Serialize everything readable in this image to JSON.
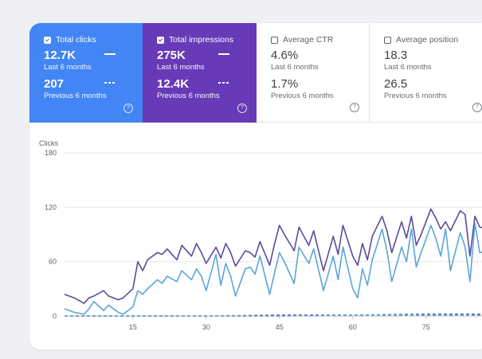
{
  "colors": {
    "clicks": "#4285f4",
    "impressions": "#673ab7",
    "clicks_line": "#5aa6d6",
    "impressions_line": "#5b4a9c",
    "grid": "#e8eaed",
    "axis_text": "#5f6368"
  },
  "metrics": [
    {
      "label": "Total clicks",
      "selected": true,
      "current": "12.7K",
      "current_sub": "Last 6 months",
      "previous": "207",
      "previous_sub": "Previous 6 months",
      "help_icon": "?"
    },
    {
      "label": "Total impressions",
      "selected": true,
      "current": "275K",
      "current_sub": "Last 6 months",
      "previous": "12.4K",
      "previous_sub": "Previous 6 months",
      "help_icon": "?"
    },
    {
      "label": "Average CTR",
      "selected": false,
      "current": "4.6%",
      "current_sub": "Last 6 months",
      "previous": "1.7%",
      "previous_sub": "Previous 6 months",
      "help_icon": "?"
    },
    {
      "label": "Average position",
      "selected": false,
      "current": "18.3",
      "current_sub": "Last 6 months",
      "previous": "26.5",
      "previous_sub": "Previous 6 months",
      "help_icon": "?"
    }
  ],
  "chart_data": {
    "type": "line",
    "ylabel": "Clicks",
    "ylim": [
      0,
      180
    ],
    "yticks": [
      0,
      60,
      120,
      180
    ],
    "xlim": [
      1,
      92
    ],
    "xticks": [
      15,
      30,
      45,
      60,
      75
    ],
    "grid": true,
    "series": [
      {
        "role": "impressions",
        "style": "solid",
        "x": [
          1,
          3,
          5,
          6,
          7,
          9,
          10,
          12,
          13,
          15,
          16,
          17,
          18,
          20,
          21,
          22,
          24,
          25,
          27,
          28,
          29,
          30,
          32,
          33,
          34,
          35,
          36,
          38,
          39,
          40,
          41,
          43,
          44,
          45,
          46,
          48,
          49,
          51,
          52,
          54,
          56,
          57,
          58,
          60,
          61,
          62,
          63,
          64,
          66,
          67,
          68,
          70,
          71,
          72,
          73,
          74,
          76,
          77,
          78,
          79,
          80,
          82,
          83,
          84,
          85,
          86,
          88,
          89,
          90,
          92
        ],
        "y": [
          24,
          20,
          14,
          20,
          22,
          28,
          22,
          18,
          20,
          30,
          60,
          50,
          62,
          70,
          68,
          74,
          62,
          78,
          66,
          80,
          70,
          58,
          76,
          64,
          80,
          70,
          55,
          72,
          70,
          65,
          82,
          56,
          80,
          100,
          90,
          72,
          98,
          78,
          94,
          50,
          88,
          68,
          100,
          66,
          56,
          80,
          62,
          88,
          110,
          94,
          70,
          104,
          86,
          110,
          78,
          90,
          118,
          108,
          96,
          104,
          94,
          116,
          112,
          66,
          110,
          98,
          96,
          116,
          100,
          122
        ]
      },
      {
        "role": "clicks",
        "style": "solid",
        "x": [
          1,
          3,
          5,
          6,
          7,
          9,
          10,
          12,
          13,
          15,
          16,
          17,
          18,
          20,
          21,
          22,
          24,
          25,
          27,
          28,
          29,
          30,
          32,
          33,
          34,
          35,
          36,
          38,
          39,
          40,
          41,
          43,
          44,
          45,
          46,
          48,
          49,
          51,
          52,
          54,
          56,
          57,
          58,
          60,
          61,
          62,
          63,
          64,
          66,
          67,
          68,
          70,
          71,
          72,
          73,
          74,
          76,
          77,
          78,
          79,
          80,
          82,
          83,
          84,
          85,
          86,
          88,
          89,
          90,
          92
        ],
        "y": [
          8,
          4,
          2,
          8,
          16,
          6,
          12,
          4,
          2,
          10,
          28,
          24,
          30,
          40,
          36,
          44,
          38,
          50,
          40,
          52,
          44,
          28,
          68,
          34,
          58,
          44,
          22,
          52,
          54,
          46,
          66,
          24,
          48,
          70,
          60,
          36,
          76,
          58,
          74,
          28,
          66,
          40,
          76,
          30,
          20,
          52,
          34,
          62,
          96,
          72,
          38,
          76,
          60,
          96,
          54,
          70,
          100,
          86,
          66,
          96,
          50,
          92,
          76,
          38,
          102,
          70,
          72,
          106,
          84,
          112
        ]
      },
      {
        "role": "impressions-previous",
        "style": "dashed",
        "x": [
          1,
          30,
          45,
          60,
          75,
          92
        ],
        "y": [
          0,
          0,
          1,
          1,
          2,
          2
        ]
      },
      {
        "role": "clicks-previous",
        "style": "dashed",
        "x": [
          1,
          30,
          45,
          60,
          75,
          92
        ],
        "y": [
          0,
          0,
          0,
          1,
          1,
          1
        ]
      }
    ]
  }
}
